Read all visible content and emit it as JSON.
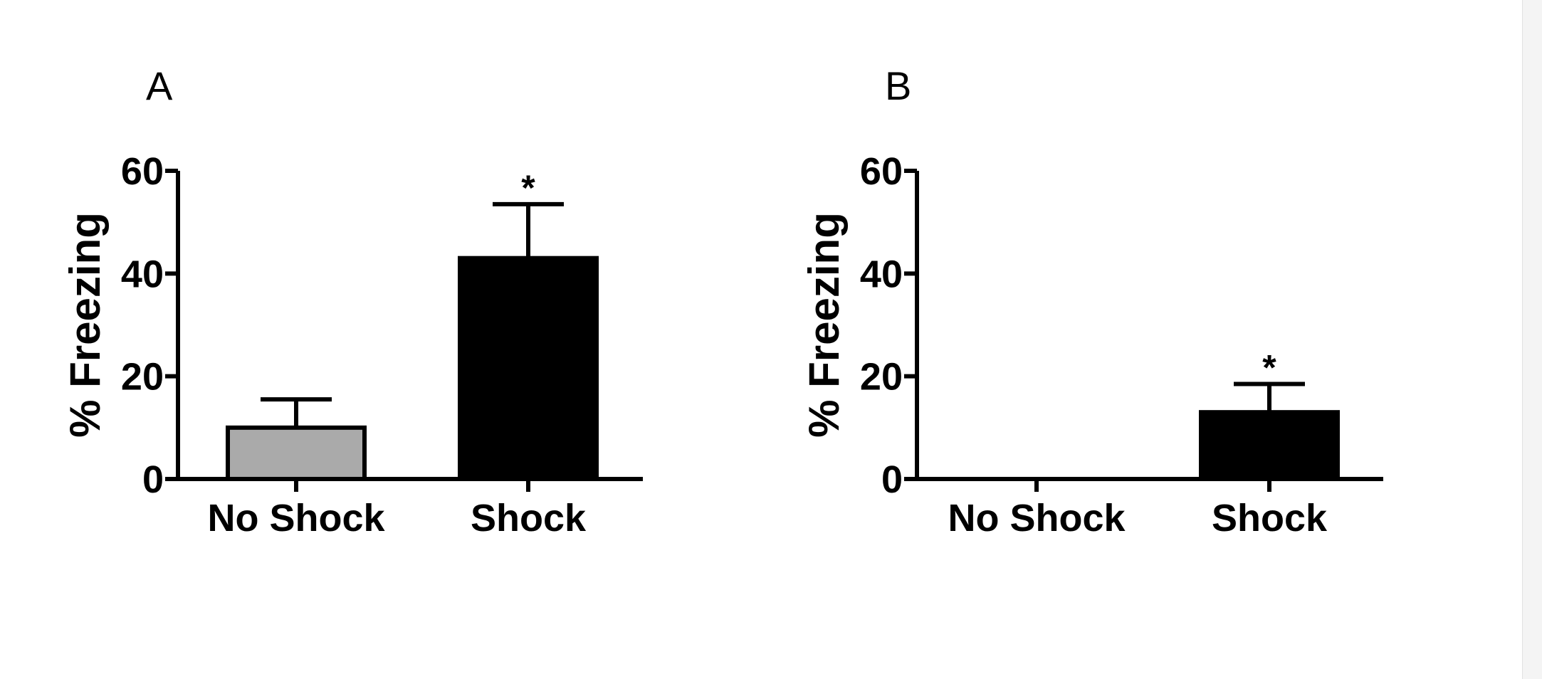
{
  "chart_data": [
    {
      "type": "bar",
      "panel_label": "A",
      "categories": [
        "No Shock",
        "Shock"
      ],
      "values": [
        10,
        43
      ],
      "errors": [
        5.5,
        10.5
      ],
      "significance": [
        "",
        "*"
      ],
      "ylabel": "% Freezing",
      "ylim": [
        0,
        60
      ],
      "yticks": [
        "0",
        "20",
        "40",
        "60"
      ],
      "grid": false,
      "colors": [
        "#aaaaaa",
        "#000000"
      ]
    },
    {
      "type": "bar",
      "panel_label": "B",
      "categories": [
        "No Shock",
        "Shock"
      ],
      "values": [
        0,
        13
      ],
      "errors": [
        0,
        5.5
      ],
      "significance": [
        "",
        "*"
      ],
      "ylabel": "% Freezing",
      "ylim": [
        0,
        60
      ],
      "yticks": [
        "0",
        "20",
        "40",
        "60"
      ],
      "grid": false,
      "colors": [
        "#aaaaaa",
        "#000000"
      ]
    }
  ]
}
